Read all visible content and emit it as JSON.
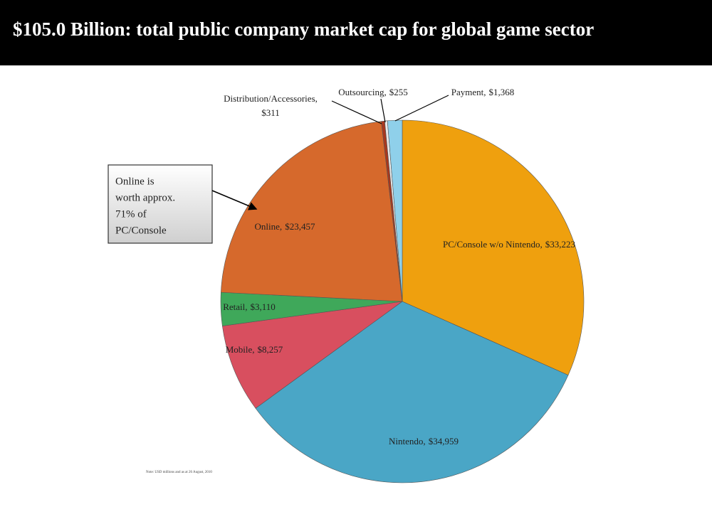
{
  "chart_data": {
    "type": "pie",
    "title": "$105.0 Billion: total public company market cap for global game sector",
    "categories": [
      "PC/Console w/o Nintendo,",
      "Nintendo,",
      "Mobile,",
      "Retail,",
      "Online,",
      "Distribution/Accessories,",
      "Outsourcing,",
      "Payment,"
    ],
    "values": [
      33223,
      34959,
      8257,
      3110,
      23457,
      311,
      255,
      1368
    ],
    "value_labels": [
      "$33,223",
      "$34,959",
      "$8,257",
      "$3,110",
      "$23,457",
      "$311",
      "$255",
      "$1,368"
    ],
    "colors": [
      "#efa00e",
      "#4aa6c6",
      "#d84f5f",
      "#3fa85a",
      "#d6692c",
      "#a8381e",
      "#e9e9e9",
      "#8fd0ea"
    ],
    "annotation": [
      "Online is",
      "worth approx.",
      "71% of",
      "PC/Console"
    ],
    "note": "Note: USD millions and as at 26 August, 2010"
  }
}
